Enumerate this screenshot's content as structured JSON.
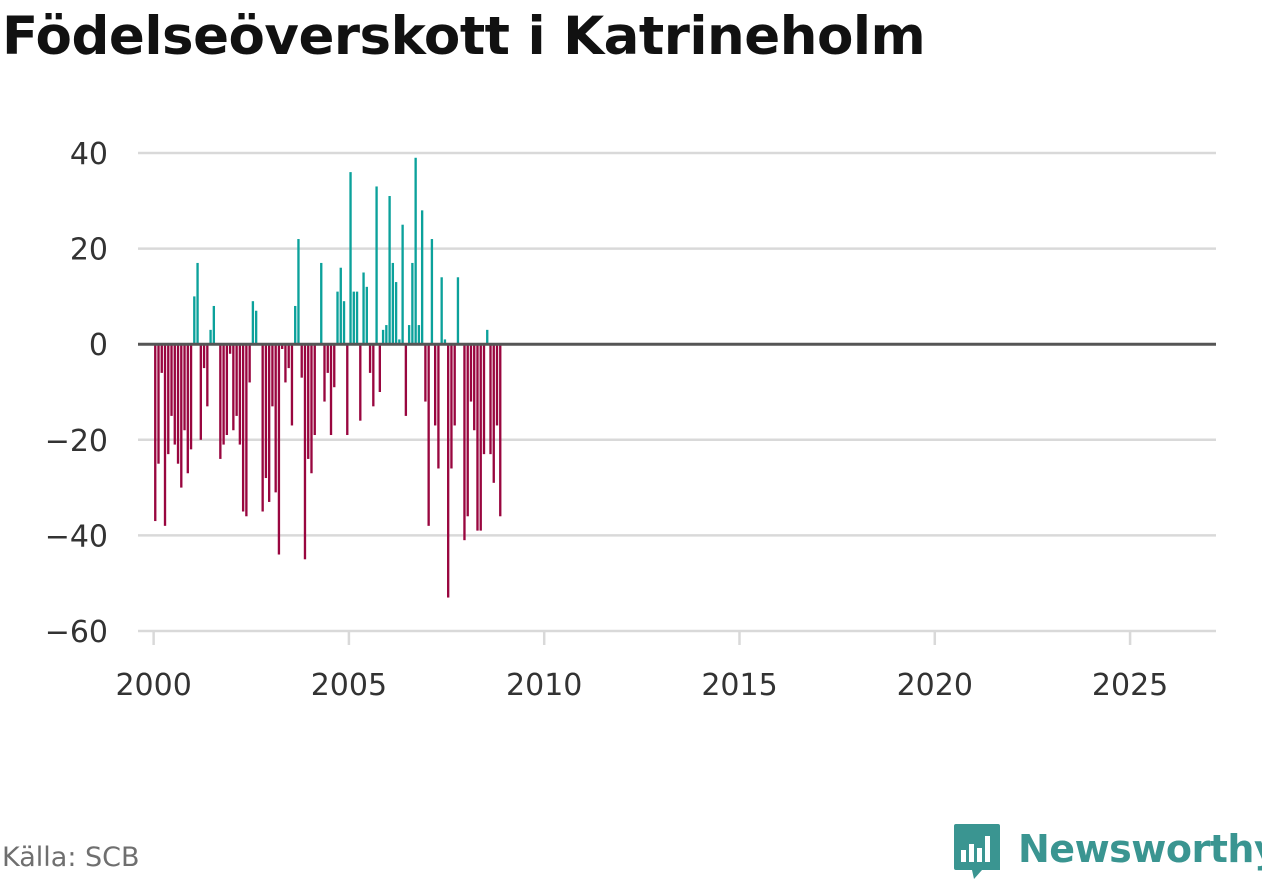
{
  "title": "Födelseöverskott i Katrineholm",
  "source": "Källa: SCB",
  "brand": "Newsworthy",
  "colors": {
    "positive": "#0ba19b",
    "negative": "#99063f",
    "grid": "#d9d9d9",
    "zero": "#555555",
    "brand": "#3a9591"
  },
  "chart_data": {
    "type": "bar",
    "title": "Födelseöverskott i Katrineholm",
    "xlabel": "",
    "ylabel": "",
    "ylim": [
      -60,
      40
    ],
    "xlim": [
      1999.6,
      2027.2
    ],
    "y_ticks": [
      40,
      20,
      0,
      -20,
      -40,
      -60
    ],
    "y_tick_labels": [
      "40",
      "20",
      "0",
      "−20",
      "−40",
      "−60"
    ],
    "x_ticks": [
      2000,
      2005,
      2010,
      2015,
      2020,
      2025
    ],
    "x_tick_labels": [
      "2000",
      "2005",
      "2010",
      "2015",
      "2020",
      "2025"
    ],
    "interval": "monthly",
    "start_year": 2000,
    "start_month": 1,
    "values": [
      -37,
      -25,
      -6,
      -38,
      -23,
      -15,
      -21,
      -25,
      -30,
      -18,
      -27,
      -22,
      10,
      17,
      -20,
      -5,
      -13,
      3,
      8,
      0,
      -24,
      -21,
      -19,
      -2,
      -18,
      -15,
      -21,
      -35,
      -36,
      -8,
      9,
      7,
      0,
      -35,
      -28,
      -33,
      -13,
      -31,
      -44,
      -1,
      -8,
      -5,
      -17,
      8,
      22,
      -7,
      -45,
      -24,
      -27,
      -19,
      0,
      17,
      -12,
      -6,
      -19,
      -9,
      11,
      16,
      9,
      -19,
      36,
      11,
      11,
      -16,
      15,
      12,
      -6,
      -13,
      33,
      -10,
      3,
      4,
      31,
      17,
      13,
      1,
      25,
      -15,
      4,
      17,
      39,
      4,
      28,
      -12,
      -38,
      22,
      -17,
      -26,
      14,
      1,
      -53,
      -26,
      -17,
      14,
      0,
      -41,
      -36,
      -12,
      -18,
      -39,
      -39,
      -23,
      3,
      -23,
      -29,
      -17,
      -36
    ]
  }
}
